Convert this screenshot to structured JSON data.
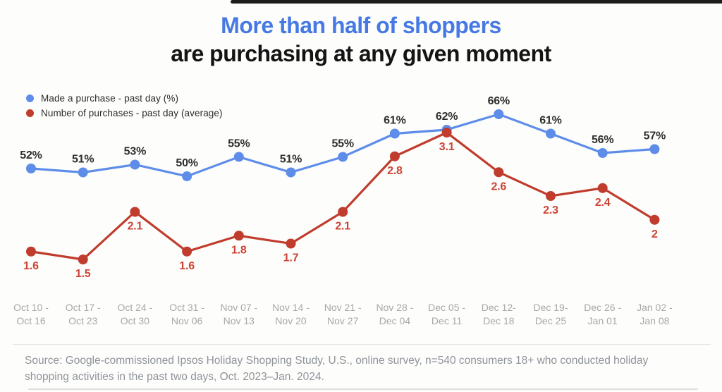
{
  "page": {
    "title_line1": "More than half of shoppers",
    "title_line2": "are purchasing at any given moment",
    "source_text": "Source: Google-commissioned Ipsos Holiday Shopping Study, U.S., online survey, n=540 consumers 18+ who conducted holiday shopping activities in the past two days, Oct. 2023–Jan. 2024."
  },
  "colors": {
    "title_accent": "#4779e4",
    "title_dark": "#141414",
    "blue_series": "#5e8de9",
    "red_series": "#c03c2d",
    "blue_label": "#2e2e2e",
    "red_label": "#cc4335",
    "axis_label": "#a8a8a8",
    "source_text": "#8f9498",
    "top_strip": "#1d1d1d"
  },
  "chart_data": {
    "type": "line",
    "title": "More than half of shoppers are purchasing at any given moment",
    "legend_position": "top-left",
    "grid": false,
    "y_axis_visible": false,
    "categories": [
      [
        "Oct 10 -",
        "Oct 16"
      ],
      [
        "Oct 17 -",
        "Oct 23"
      ],
      [
        "Oct 24 -",
        "Oct 30"
      ],
      [
        "Oct 31 -",
        "Nov 06"
      ],
      [
        "Nov 07 -",
        "Nov 13"
      ],
      [
        "Nov 14 -",
        "Nov 20"
      ],
      [
        "Nov 21 -",
        "Nov 27"
      ],
      [
        "Nov 28 -",
        "Dec 04"
      ],
      [
        "Dec 05 -",
        "Dec 11"
      ],
      [
        "Dec 12-",
        "Dec 18"
      ],
      [
        "Dec 19-",
        "Dec 25"
      ],
      [
        "Dec 26 -",
        "Jan 01"
      ],
      [
        "Jan 02 -",
        "Jan 08"
      ]
    ],
    "series": [
      {
        "name": "Made a purchase - past day (%)",
        "color": "#5e8de9",
        "label_color": "#2e2e2e",
        "label_position": "above",
        "values": [
          52,
          51,
          53,
          50,
          55,
          51,
          55,
          61,
          62,
          66,
          61,
          56,
          57
        ],
        "labels": [
          "52%",
          "51%",
          "53%",
          "50%",
          "55%",
          "51%",
          "55%",
          "61%",
          "62%",
          "66%",
          "61%",
          "56%",
          "57%"
        ]
      },
      {
        "name": "Number of purchases - past day (average)",
        "color": "#c03c2d",
        "label_color": "#cc4335",
        "label_position": "below",
        "values": [
          1.6,
          1.5,
          2.1,
          1.6,
          1.8,
          1.7,
          2.1,
          2.8,
          3.1,
          2.6,
          2.3,
          2.4,
          2
        ],
        "labels": [
          "1.6",
          "1.5",
          "2.1",
          "1.6",
          "1.8",
          "1.7",
          "2.1",
          "2.8",
          "3.1",
          "2.6",
          "2.3",
          "2.4",
          "2"
        ]
      }
    ]
  }
}
